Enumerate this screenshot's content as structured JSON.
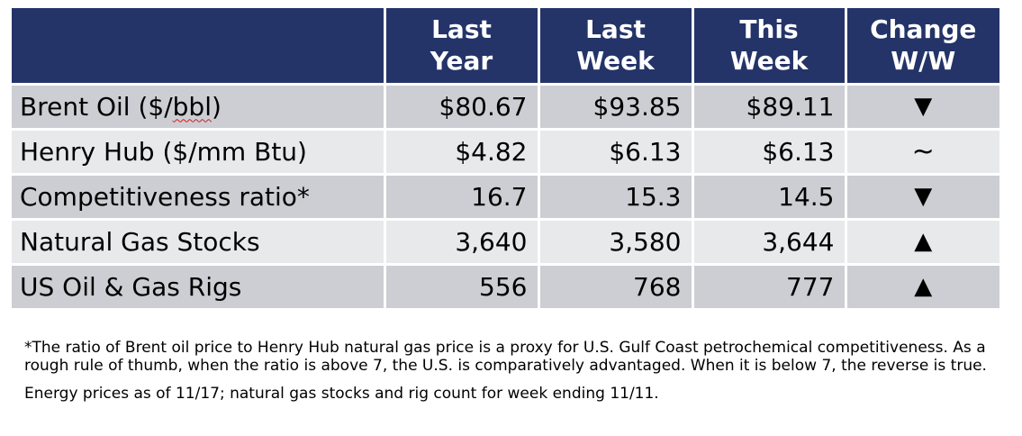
{
  "table": {
    "headers": [
      "",
      "Last\nYear",
      "Last\nWeek",
      "This\nWeek",
      "Change\nW/W"
    ],
    "rows": [
      {
        "label_pre": "Brent Oil ($/",
        "label_mark": "bbl",
        "label_post": ")",
        "last_year": "$80.67",
        "last_week": "$93.85",
        "this_week": "$89.11",
        "change": "▼"
      },
      {
        "label_pre": "Henry Hub ($/mm Btu)",
        "label_mark": "",
        "label_post": "",
        "last_year": "$4.82",
        "last_week": "$6.13",
        "this_week": "$6.13",
        "change": "~"
      },
      {
        "label_pre": "Competitiveness ratio*",
        "label_mark": "",
        "label_post": "",
        "last_year": "16.7",
        "last_week": "15.3",
        "this_week": "14.5",
        "change": "▼"
      },
      {
        "label_pre": "Natural Gas Stocks",
        "label_mark": "",
        "label_post": "",
        "last_year": "3,640",
        "last_week": "3,580",
        "this_week": "3,644",
        "change": "▲"
      },
      {
        "label_pre": "US Oil & Gas Rigs",
        "label_mark": "",
        "label_post": "",
        "last_year": "556",
        "last_week": "768",
        "this_week": "777",
        "change": "▲"
      }
    ]
  },
  "footnote": "*The ratio of Brent oil price to Henry Hub natural gas price is a proxy for U.S. Gulf Coast petrochemical competitiveness. As a rough rule of thumb, when the ratio is above 7, the U.S. is comparatively advantaged. When it is below 7, the reverse is true.",
  "date_note": "Energy prices as of 11/17; natural gas stocks and rig count for week ending 11/11.",
  "colors": {
    "header_bg": "#243469",
    "row_dark": "#cdced3",
    "row_light": "#e8e9eb"
  }
}
